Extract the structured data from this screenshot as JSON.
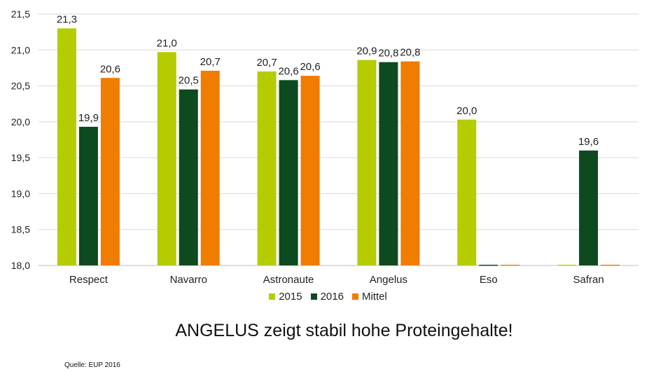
{
  "chart_data": {
    "type": "bar",
    "categories": [
      "Respect",
      "Navarro",
      "Astronaute",
      "Angelus",
      "Eso",
      "Safran"
    ],
    "series": [
      {
        "name": "2015",
        "color": "#b5cc00",
        "values": [
          21.3,
          20.97,
          20.7,
          20.86,
          20.03,
          null
        ],
        "labels": [
          "21,3",
          "21,0",
          "20,7",
          "20,9",
          "20,0",
          ""
        ]
      },
      {
        "name": "2016",
        "color": "#0d4a1f",
        "values": [
          19.93,
          20.45,
          20.58,
          20.83,
          null,
          19.6
        ],
        "labels": [
          "19,9",
          "20,5",
          "20,6",
          "20,8",
          "",
          "19,6"
        ]
      },
      {
        "name": "Mittel",
        "color": "#f07c00",
        "values": [
          20.61,
          20.71,
          20.64,
          20.84,
          null,
          null
        ],
        "labels": [
          "20,6",
          "20,7",
          "20,6",
          "20,8",
          "",
          ""
        ]
      }
    ],
    "ylim": [
      18.0,
      21.5
    ],
    "yticks": [
      "18,0",
      "18,5",
      "19,0",
      "19,5",
      "20,0",
      "20,5",
      "21,0",
      "21,5"
    ],
    "legend_position": "bottom",
    "grid": true
  },
  "headline": "ANGELUS zeigt stabil hohe Proteingehalte!",
  "source": "Quelle: EUP 2016"
}
